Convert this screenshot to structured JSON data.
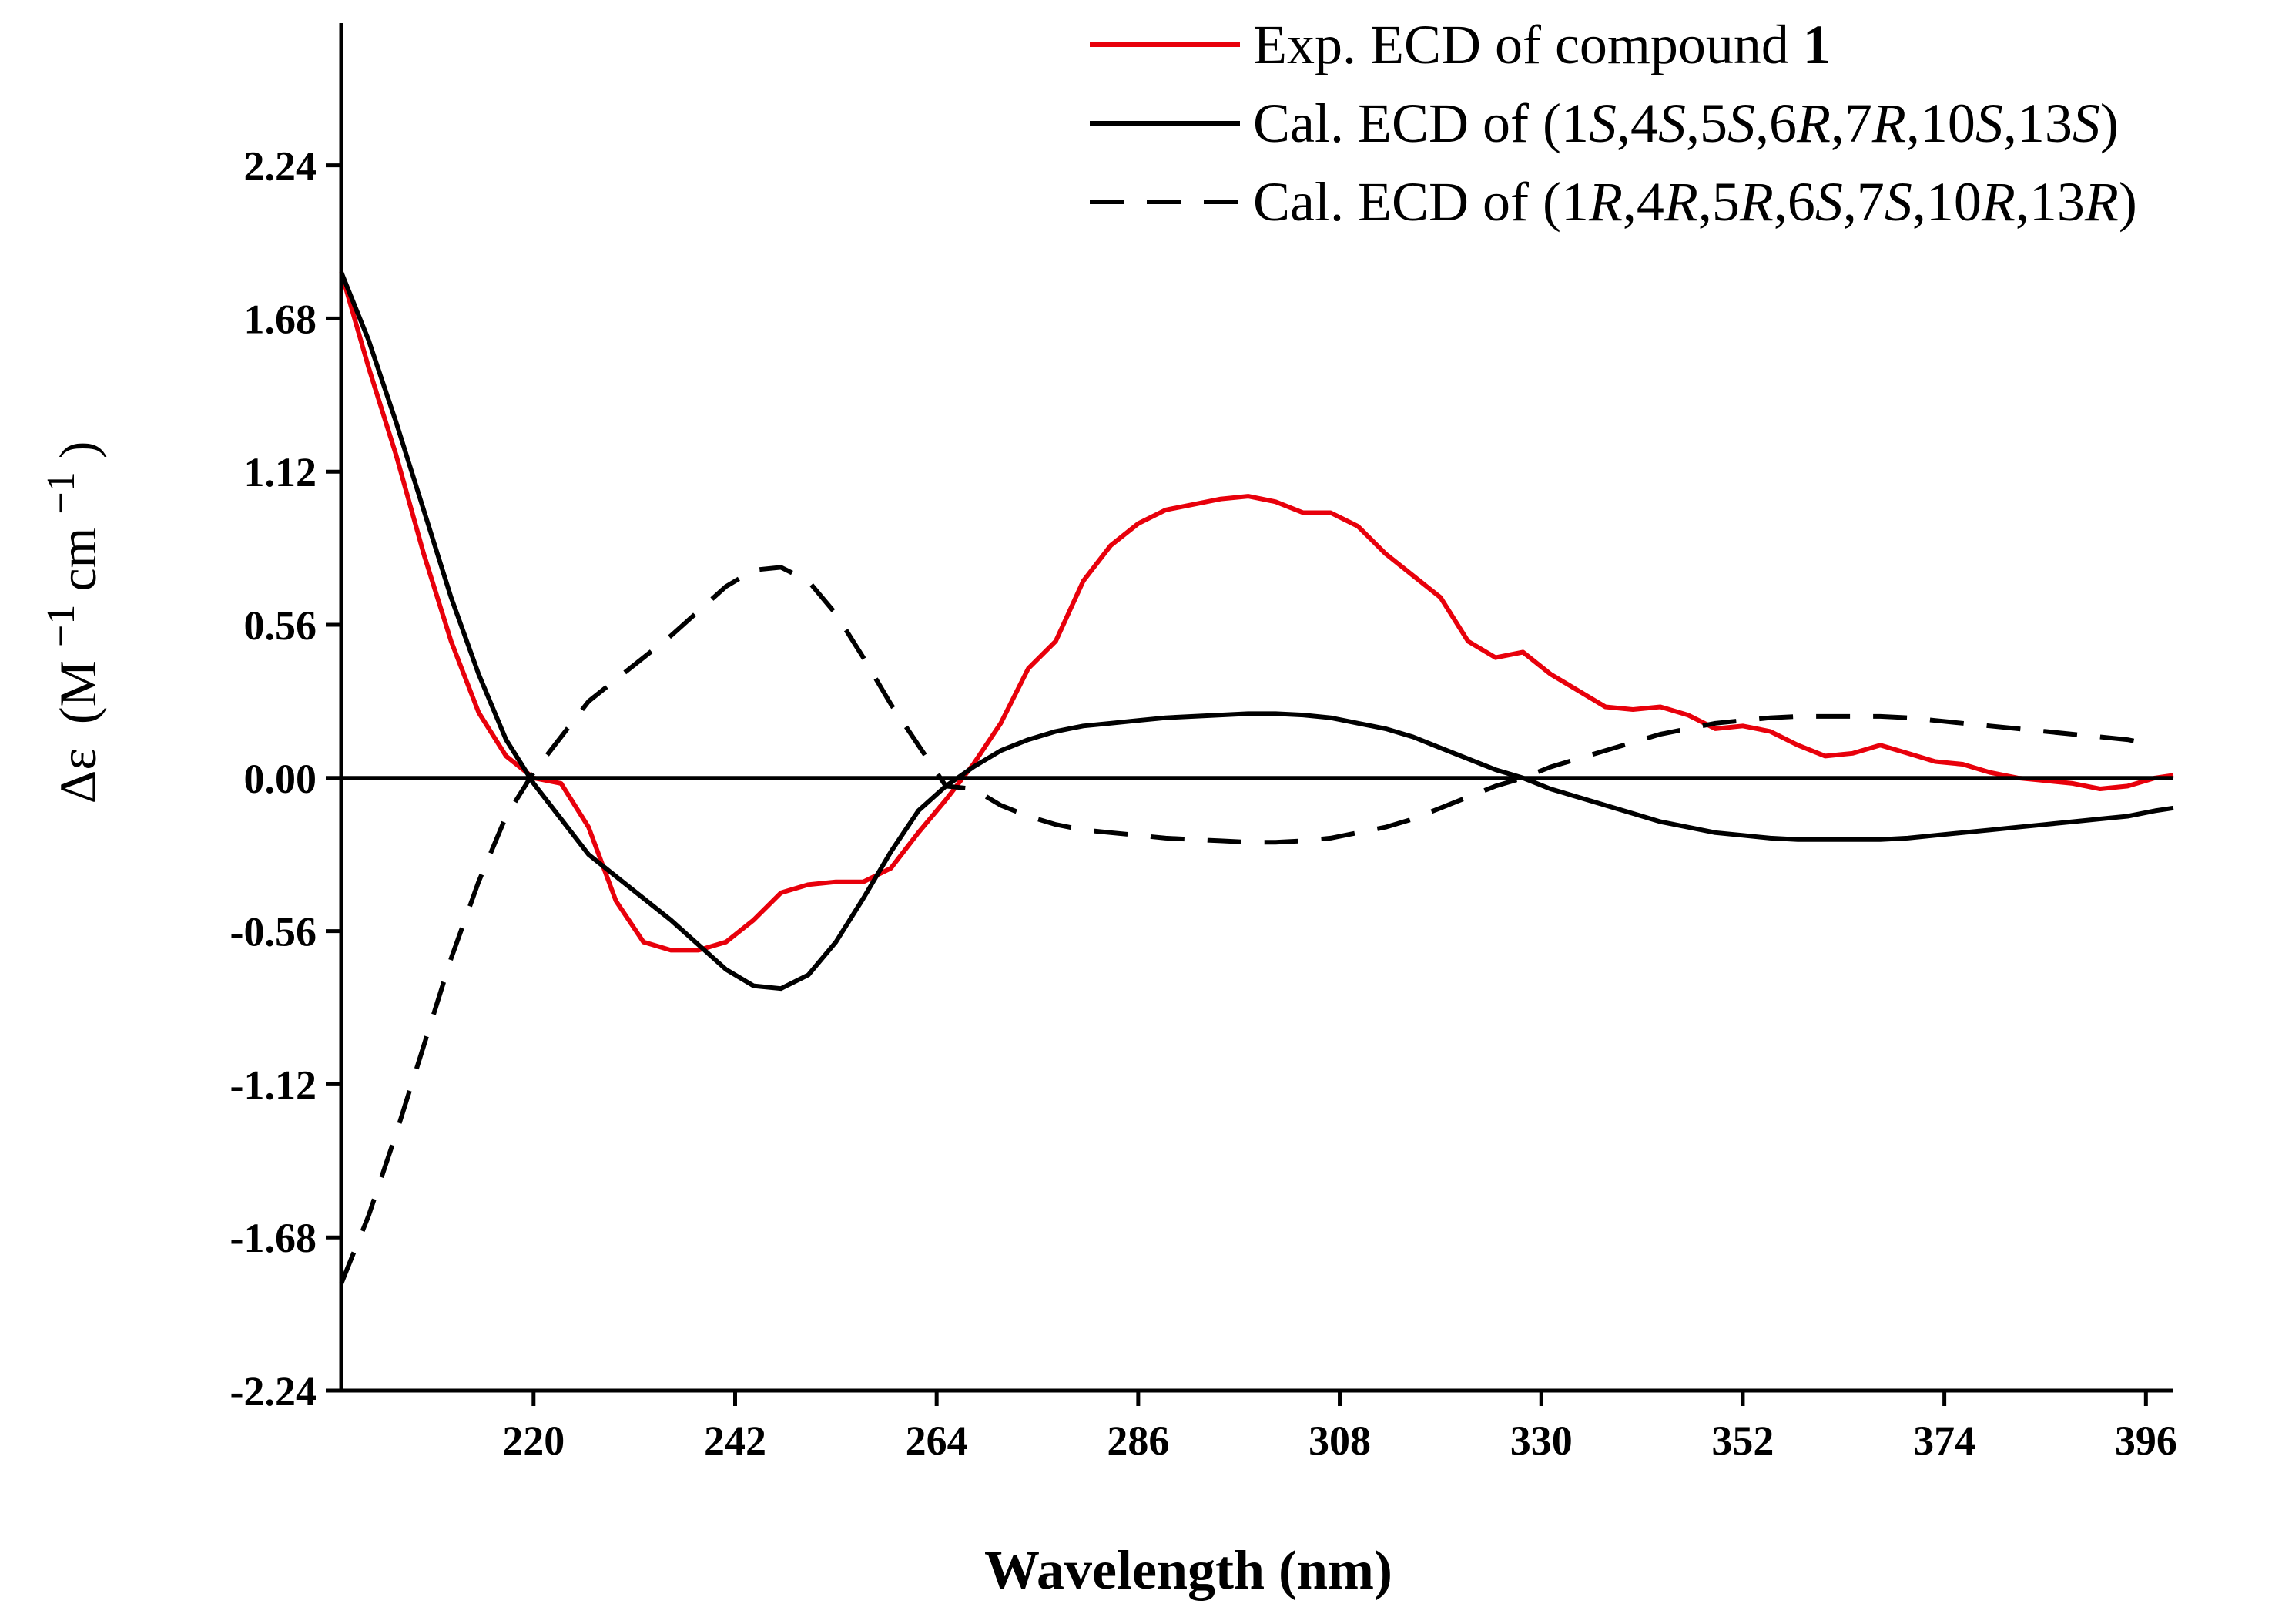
{
  "chart_data": {
    "type": "line",
    "xlabel": "Wavelength (nm)",
    "ylabel": {
      "symbol": "Δε",
      "open": "(M",
      "sup1": "−1",
      "mid": "cm",
      "sup2": "−1",
      "close": ")"
    },
    "xlim": [
      199,
      399
    ],
    "ylim": [
      -2.24,
      2.76
    ],
    "x_ticks": [
      220,
      242,
      264,
      286,
      308,
      330,
      352,
      374,
      396
    ],
    "x_tick_labels": [
      "220",
      "242",
      "264",
      "286",
      "308",
      "330",
      "352",
      "374",
      "396"
    ],
    "y_ticks": [
      2.24,
      1.68,
      1.12,
      0.56,
      0.0,
      -0.56,
      -1.12,
      -1.68,
      -2.24
    ],
    "y_tick_labels": [
      "2.24",
      "1.68",
      "1.12",
      "0.56",
      "0.00",
      "-0.56",
      "-1.12",
      "-1.68",
      "-2.24"
    ],
    "zero_line": true,
    "grid": false,
    "legend_position": "top-right",
    "series": [
      {
        "name": "Exp. ECD of compound 1",
        "legend": [
          {
            "t": "Exp. ECD of compound "
          },
          {
            "t": "1",
            "bold": true
          }
        ],
        "color": "#e8000b",
        "dash": "solid",
        "x": [
          199,
          202,
          205,
          208,
          211,
          214,
          217,
          220,
          223,
          226,
          229,
          232,
          235,
          238,
          241,
          244,
          247,
          250,
          253,
          256,
          259,
          262,
          265,
          268,
          271,
          274,
          277,
          280,
          283,
          286,
          289,
          292,
          295,
          298,
          301,
          304,
          307,
          310,
          313,
          316,
          319,
          322,
          325,
          328,
          331,
          334,
          337,
          340,
          343,
          346,
          349,
          352,
          355,
          358,
          361,
          364,
          367,
          370,
          373,
          376,
          379,
          382,
          385,
          388,
          391,
          394,
          397,
          399
        ],
        "y": [
          1.85,
          1.5,
          1.18,
          0.82,
          0.5,
          0.24,
          0.08,
          0.0,
          -0.02,
          -0.18,
          -0.45,
          -0.6,
          -0.63,
          -0.63,
          -0.6,
          -0.52,
          -0.42,
          -0.39,
          -0.38,
          -0.38,
          -0.33,
          -0.2,
          -0.08,
          0.05,
          0.2,
          0.4,
          0.5,
          0.72,
          0.85,
          0.93,
          0.98,
          1.0,
          1.02,
          1.03,
          1.01,
          0.97,
          0.97,
          0.92,
          0.82,
          0.74,
          0.66,
          0.5,
          0.44,
          0.46,
          0.38,
          0.32,
          0.26,
          0.25,
          0.26,
          0.23,
          0.18,
          0.19,
          0.17,
          0.12,
          0.08,
          0.09,
          0.12,
          0.09,
          0.06,
          0.05,
          0.02,
          0.0,
          -0.01,
          -0.02,
          -0.04,
          -0.03,
          0.0,
          0.01
        ]
      },
      {
        "name": "Cal. ECD of (1S,4S,5S,6R,7R,10S,13S)",
        "legend": [
          {
            "t": "Cal. ECD of (1"
          },
          {
            "t": "S",
            "italic": true
          },
          {
            "t": ",4"
          },
          {
            "t": "S",
            "italic": true
          },
          {
            "t": ",5"
          },
          {
            "t": "S",
            "italic": true
          },
          {
            "t": ",6"
          },
          {
            "t": "R",
            "italic": true
          },
          {
            "t": ",7"
          },
          {
            "t": "R",
            "italic": true
          },
          {
            "t": ",10"
          },
          {
            "t": "S",
            "italic": true
          },
          {
            "t": ",13"
          },
          {
            "t": "S",
            "italic": true
          },
          {
            "t": ")"
          }
        ],
        "color": "#000000",
        "dash": "solid",
        "x": [
          199,
          202,
          205,
          208,
          211,
          214,
          217,
          220,
          223,
          226,
          229,
          232,
          235,
          238,
          241,
          244,
          247,
          250,
          253,
          256,
          259,
          262,
          265,
          268,
          271,
          274,
          277,
          280,
          283,
          286,
          289,
          292,
          295,
          298,
          301,
          304,
          307,
          310,
          313,
          316,
          319,
          322,
          325,
          328,
          331,
          334,
          337,
          340,
          343,
          346,
          349,
          352,
          355,
          358,
          361,
          364,
          367,
          370,
          373,
          376,
          379,
          382,
          385,
          388,
          391,
          394,
          397,
          399
        ],
        "y": [
          1.85,
          1.6,
          1.3,
          0.98,
          0.66,
          0.38,
          0.14,
          -0.02,
          -0.15,
          -0.28,
          -0.36,
          -0.44,
          -0.52,
          -0.61,
          -0.7,
          -0.76,
          -0.77,
          -0.72,
          -0.6,
          -0.44,
          -0.27,
          -0.12,
          -0.03,
          0.04,
          0.1,
          0.14,
          0.17,
          0.19,
          0.2,
          0.21,
          0.22,
          0.225,
          0.23,
          0.235,
          0.235,
          0.23,
          0.22,
          0.2,
          0.18,
          0.15,
          0.11,
          0.07,
          0.03,
          0.0,
          -0.04,
          -0.07,
          -0.1,
          -0.13,
          -0.16,
          -0.18,
          -0.2,
          -0.21,
          -0.22,
          -0.225,
          -0.225,
          -0.225,
          -0.225,
          -0.22,
          -0.21,
          -0.2,
          -0.19,
          -0.18,
          -0.17,
          -0.16,
          -0.15,
          -0.14,
          -0.12,
          -0.11
        ]
      },
      {
        "name": "Cal. ECD of (1R,4R,5R,6S,7S,10R,13R)",
        "legend": [
          {
            "t": "Cal. ECD of (1"
          },
          {
            "t": "R",
            "italic": true
          },
          {
            "t": ",4"
          },
          {
            "t": "R",
            "italic": true
          },
          {
            "t": ",5"
          },
          {
            "t": "R",
            "italic": true
          },
          {
            "t": ",6"
          },
          {
            "t": "S",
            "italic": true
          },
          {
            "t": ",7"
          },
          {
            "t": "S",
            "italic": true
          },
          {
            "t": ",10"
          },
          {
            "t": "R",
            "italic": true
          },
          {
            "t": ",13"
          },
          {
            "t": "R",
            "italic": true
          },
          {
            "t": ")"
          }
        ],
        "color": "#000000",
        "dash": "dashed",
        "x": [
          199,
          202,
          205,
          208,
          211,
          214,
          217,
          220,
          223,
          226,
          229,
          232,
          235,
          238,
          241,
          244,
          247,
          250,
          253,
          256,
          259,
          262,
          265,
          268,
          271,
          274,
          277,
          280,
          283,
          286,
          289,
          292,
          295,
          298,
          301,
          304,
          307,
          310,
          313,
          316,
          319,
          322,
          325,
          328,
          331,
          334,
          337,
          340,
          343,
          346,
          349,
          352,
          355,
          358,
          361,
          364,
          367,
          370,
          373,
          376,
          379,
          382,
          385,
          388,
          391,
          394,
          397
        ],
        "y": [
          -1.85,
          -1.6,
          -1.3,
          -0.98,
          -0.66,
          -0.38,
          -0.14,
          0.02,
          0.15,
          0.28,
          0.36,
          0.44,
          0.52,
          0.61,
          0.7,
          0.76,
          0.77,
          0.72,
          0.6,
          0.44,
          0.27,
          0.12,
          -0.03,
          -0.04,
          -0.1,
          -0.14,
          -0.17,
          -0.19,
          -0.2,
          -0.21,
          -0.22,
          -0.225,
          -0.23,
          -0.235,
          -0.235,
          -0.23,
          -0.22,
          -0.2,
          -0.18,
          -0.15,
          -0.11,
          -0.07,
          -0.03,
          0.0,
          0.04,
          0.07,
          0.1,
          0.13,
          0.16,
          0.18,
          0.2,
          0.21,
          0.22,
          0.225,
          0.225,
          0.225,
          0.225,
          0.22,
          0.21,
          0.2,
          0.19,
          0.18,
          0.17,
          0.16,
          0.15,
          0.14,
          0.12
        ]
      }
    ]
  }
}
